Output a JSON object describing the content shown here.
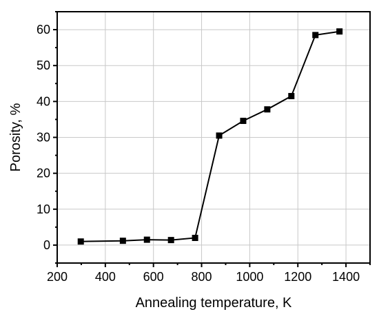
{
  "chart_data": {
    "type": "line",
    "xlabel": "Annealing temperature, K",
    "ylabel": "Porosity, %",
    "xlim": [
      200,
      1500
    ],
    "ylim": [
      -5,
      65
    ],
    "xticks": [
      200,
      400,
      600,
      800,
      1000,
      1200,
      1400
    ],
    "yticks": [
      0,
      10,
      20,
      30,
      40,
      50,
      60
    ],
    "grid": true,
    "marker": "square",
    "line_color": "#000000",
    "series": [
      {
        "x": [
          298,
          473,
          573,
          673,
          773,
          873,
          973,
          1073,
          1173,
          1273,
          1373
        ],
        "y": [
          1.0,
          1.2,
          1.5,
          1.4,
          2.0,
          30.5,
          34.6,
          37.8,
          41.5,
          58.5,
          59.5
        ]
      }
    ]
  }
}
